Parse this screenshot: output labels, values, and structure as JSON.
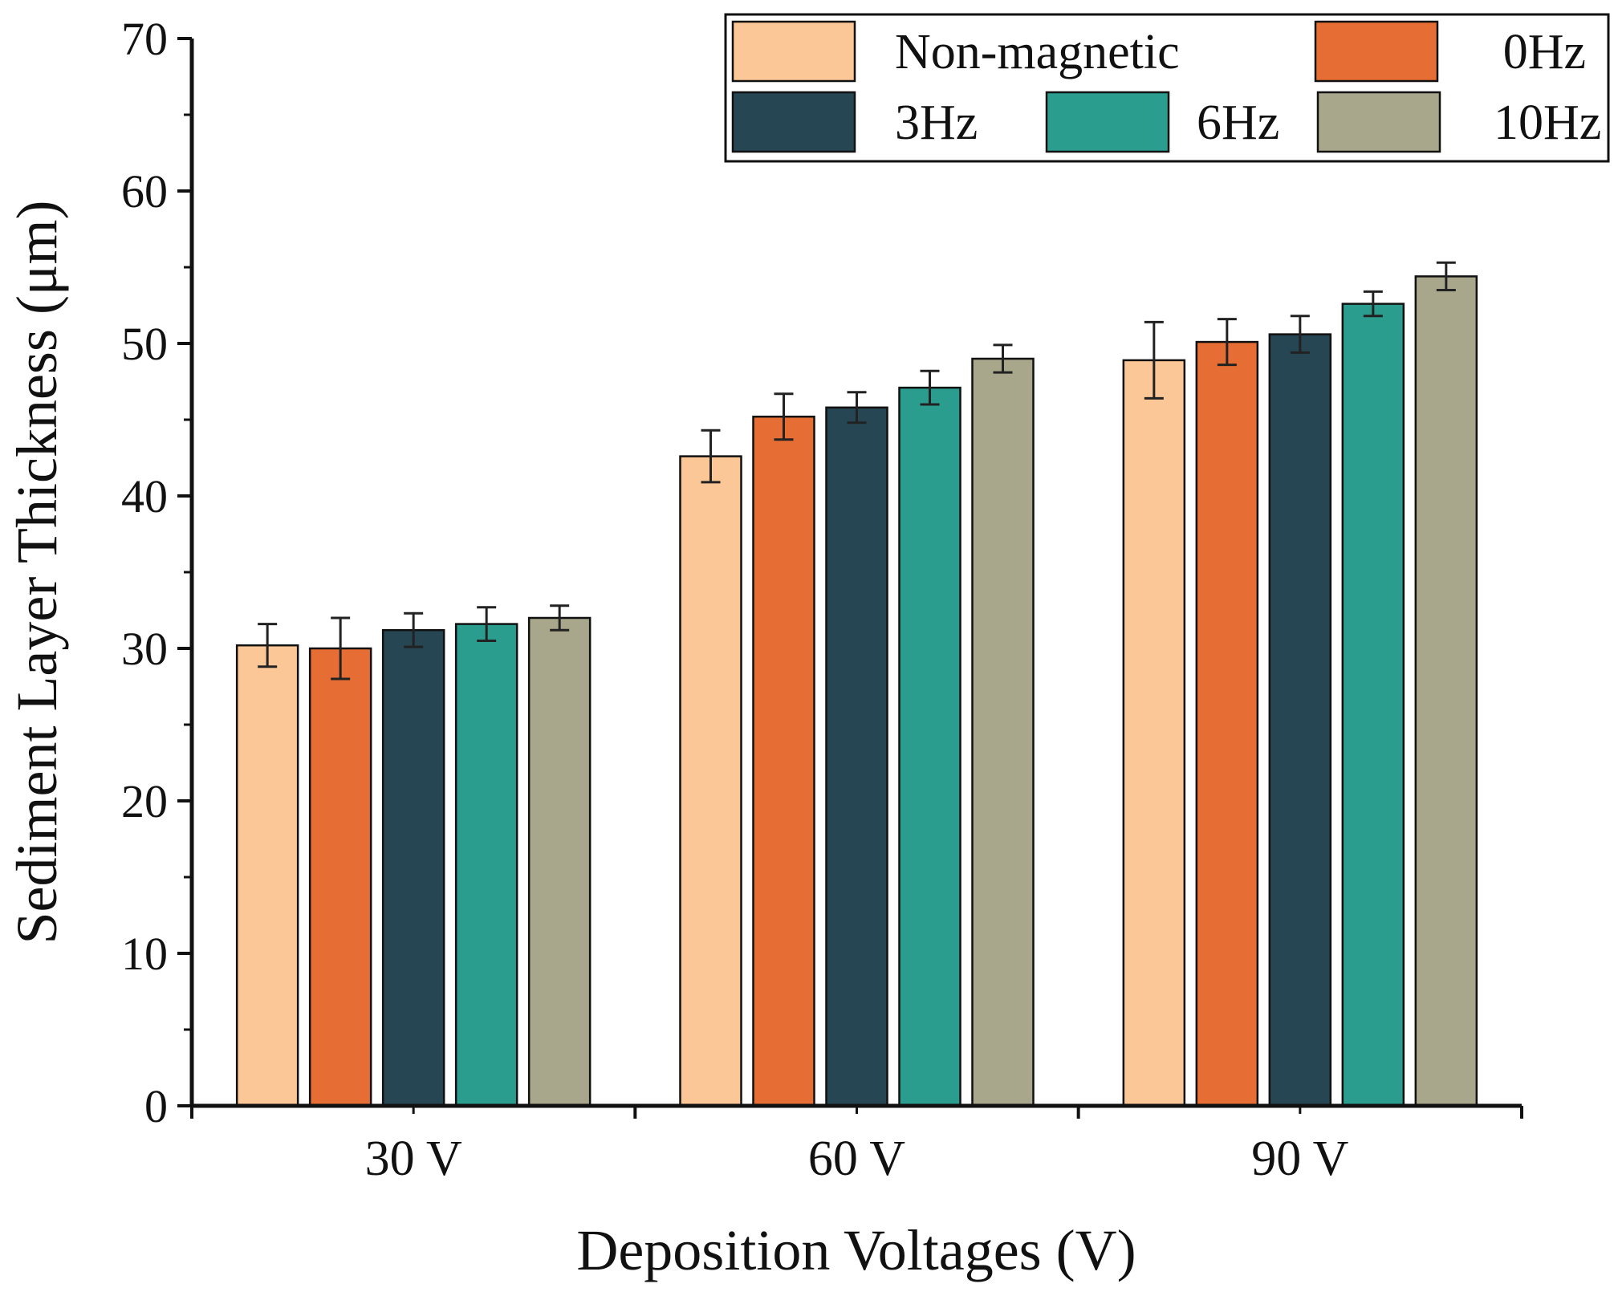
{
  "chart_data": {
    "type": "bar",
    "title": "",
    "xlabel": "Deposition Voltages (V)",
    "ylabel": "Sediment Layer Thickness  (μm)",
    "ylim": [
      0,
      70
    ],
    "yticks": [
      0,
      10,
      20,
      30,
      40,
      50,
      60,
      70
    ],
    "grid": false,
    "legend_position": "top-right",
    "categories": [
      "30 V",
      "60 V",
      "90 V"
    ],
    "series": [
      {
        "name": "Non-magnetic",
        "color": "#FBC796",
        "values": [
          30.2,
          42.6,
          48.9
        ],
        "errors": [
          1.4,
          1.7,
          2.5
        ]
      },
      {
        "name": "0Hz",
        "color": "#E66E34",
        "values": [
          30.0,
          45.2,
          50.1
        ],
        "errors": [
          2.0,
          1.5,
          1.5
        ]
      },
      {
        "name": "3Hz",
        "color": "#264653",
        "values": [
          31.2,
          45.8,
          50.6
        ],
        "errors": [
          1.1,
          1.0,
          1.2
        ]
      },
      {
        "name": "6Hz",
        "color": "#2A9D8F",
        "values": [
          31.6,
          47.1,
          52.6
        ],
        "errors": [
          1.1,
          1.1,
          0.8
        ]
      },
      {
        "name": "10Hz",
        "color": "#A8A78C",
        "values": [
          32.0,
          49.0,
          54.4
        ],
        "errors": [
          0.8,
          0.9,
          0.9
        ]
      }
    ]
  }
}
